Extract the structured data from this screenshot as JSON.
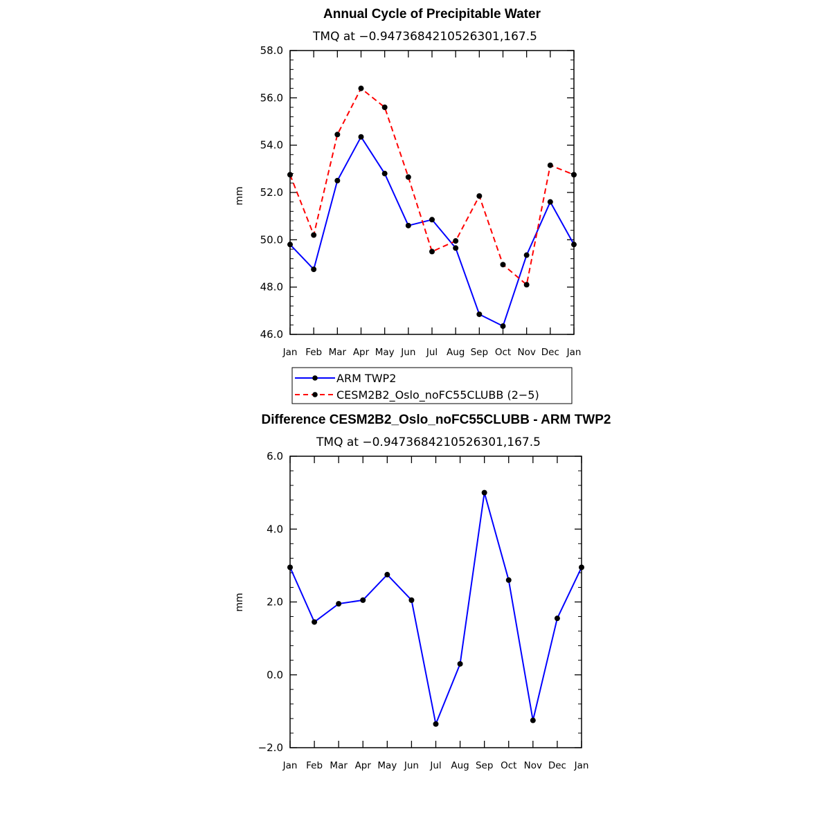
{
  "colors": {
    "arm": "#0000ff",
    "cesm": "#ff0000",
    "marker": "#000000"
  },
  "chart_data": [
    {
      "type": "line",
      "title": "Annual Cycle of Precipitable Water",
      "subtitle": "TMQ at −0.9473684210526301,167.5",
      "xlabel": "",
      "ylabel": "mm",
      "categories": [
        "Jan",
        "Feb",
        "Mar",
        "Apr",
        "May",
        "Jun",
        "Jul",
        "Aug",
        "Sep",
        "Oct",
        "Nov",
        "Dec",
        "Jan"
      ],
      "ylim": [
        46.0,
        58.0
      ],
      "yticks": [
        46.0,
        48.0,
        50.0,
        52.0,
        54.0,
        56.0,
        58.0
      ],
      "ytick_labels": [
        "46.0",
        "48.0",
        "50.0",
        "52.0",
        "54.0",
        "56.0",
        "58.0"
      ],
      "series": [
        {
          "name": "ARM TWP2",
          "style": "solid",
          "color": "#0000ff",
          "values": [
            49.8,
            48.75,
            52.5,
            54.35,
            52.8,
            50.6,
            50.85,
            49.65,
            46.85,
            46.35,
            49.35,
            51.6,
            49.8
          ]
        },
        {
          "name": "CESM2B2_Oslo_noFC55CLUBB (2−5)",
          "style": "dashed",
          "color": "#ff0000",
          "values": [
            52.75,
            50.2,
            54.45,
            56.4,
            55.6,
            52.65,
            49.5,
            49.95,
            51.85,
            48.95,
            48.1,
            53.15,
            52.75
          ]
        }
      ],
      "legend": [
        {
          "label": "ARM TWP2",
          "style": "solid",
          "color": "#0000ff"
        },
        {
          "label": "CESM2B2_Oslo_noFC55CLUBB (2−5)",
          "style": "dashed",
          "color": "#ff0000"
        }
      ]
    },
    {
      "type": "line",
      "title": "Difference CESM2B2_Oslo_noFC55CLUBB - ARM TWP2",
      "subtitle": "TMQ at −0.9473684210526301,167.5",
      "xlabel": "",
      "ylabel": "mm",
      "categories": [
        "Jan",
        "Feb",
        "Mar",
        "Apr",
        "May",
        "Jun",
        "Jul",
        "Aug",
        "Sep",
        "Oct",
        "Nov",
        "Dec",
        "Jan"
      ],
      "ylim": [
        -2.0,
        6.0
      ],
      "yticks": [
        -2.0,
        0.0,
        2.0,
        4.0,
        6.0
      ],
      "ytick_labels": [
        "−2.0",
        "0.0",
        "2.0",
        "4.0",
        "6.0"
      ],
      "series": [
        {
          "name": "Difference",
          "style": "solid",
          "color": "#0000ff",
          "values": [
            2.95,
            1.45,
            1.95,
            2.05,
            2.75,
            2.05,
            -1.35,
            0.3,
            5.0,
            2.6,
            -1.25,
            1.55,
            2.95
          ]
        }
      ]
    }
  ]
}
